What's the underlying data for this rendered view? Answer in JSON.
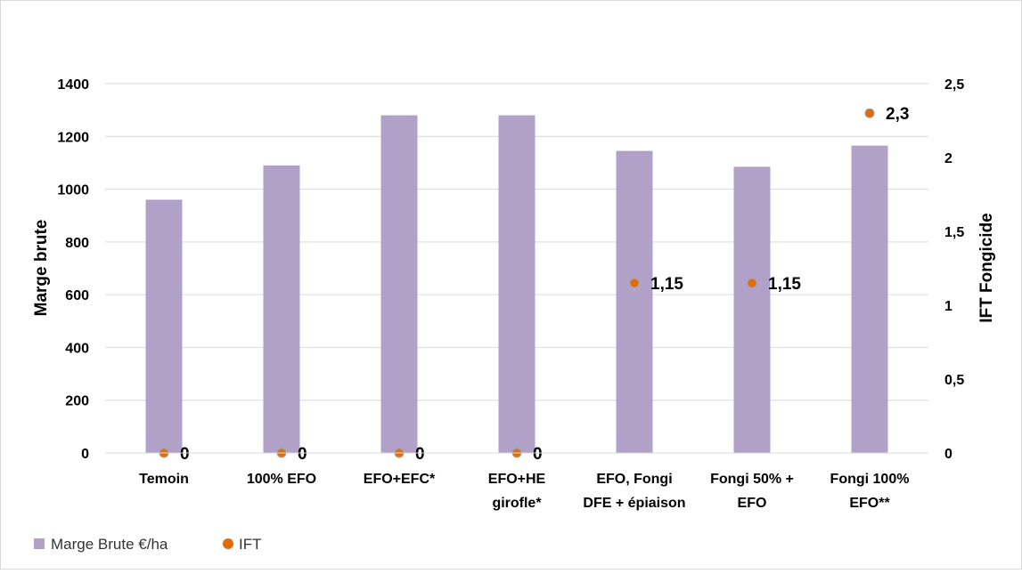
{
  "chart_data": {
    "type": "bar",
    "categories": [
      [
        "Temoin"
      ],
      [
        "100% EFO"
      ],
      [
        "EFO+EFC*"
      ],
      [
        "EFO+HE",
        "girofle*"
      ],
      [
        "EFO, Fongi",
        "DFE + épiaison"
      ],
      [
        "Fongi 50% +",
        "EFO"
      ],
      [
        "Fongi 100%",
        "EFO**"
      ]
    ],
    "series": [
      {
        "name": "Marge Brute €/ha",
        "type": "bar",
        "axis": "left",
        "values": [
          960,
          1090,
          1280,
          1280,
          1145,
          1085,
          1165
        ],
        "color": "#b1a0c7"
      },
      {
        "name": "IFT",
        "type": "scatter",
        "axis": "right",
        "values": [
          0,
          0,
          0,
          0,
          1.15,
          1.15,
          2.3
        ],
        "labels": [
          "0",
          "0",
          "0",
          "0",
          "1,15",
          "1,15",
          "2,3"
        ],
        "color": "#e36c09"
      }
    ],
    "ylabel": "Marge brute",
    "y2label": "IFT Fongicide",
    "ylim": [
      0,
      1400
    ],
    "yticks": [
      "0",
      "200",
      "400",
      "600",
      "800",
      "1000",
      "1200",
      "1400"
    ],
    "y2lim": [
      0,
      2.5
    ],
    "y2ticks": [
      "0",
      "0,5",
      "1",
      "1,5",
      "2",
      "2,5"
    ],
    "grid": true,
    "legend_position": "bottom-left"
  }
}
